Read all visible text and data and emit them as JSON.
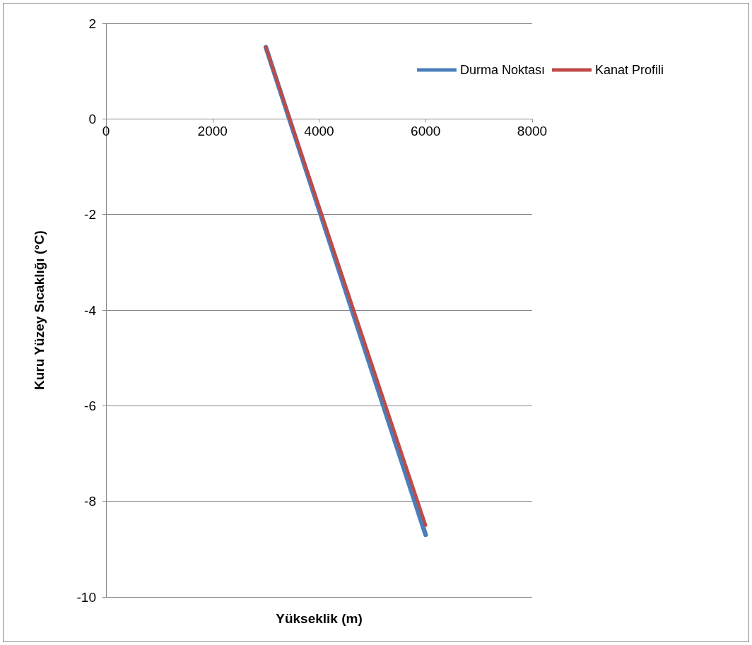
{
  "chart_data": {
    "type": "line",
    "xlabel": "Yükseklik (m)",
    "ylabel": "Kuru Yüzey Sıcaklığı (°C)",
    "x": [
      3000,
      6000
    ],
    "series": [
      {
        "name": "Durma Noktası",
        "color": "#4a7ebb",
        "values": [
          1.5,
          -8.7
        ]
      },
      {
        "name": "Kanat Profili",
        "color": "#be4b48",
        "values": [
          1.5,
          -8.5
        ]
      }
    ],
    "xlim": [
      0,
      8000
    ],
    "xticks": [
      0,
      2000,
      4000,
      6000,
      8000
    ],
    "ylim": [
      -10,
      2
    ],
    "yticks": [
      -10,
      -8,
      -6,
      -4,
      -2,
      0,
      2
    ],
    "grid": "y",
    "legend": "top right",
    "marker": "none",
    "line_style": "solid"
  }
}
